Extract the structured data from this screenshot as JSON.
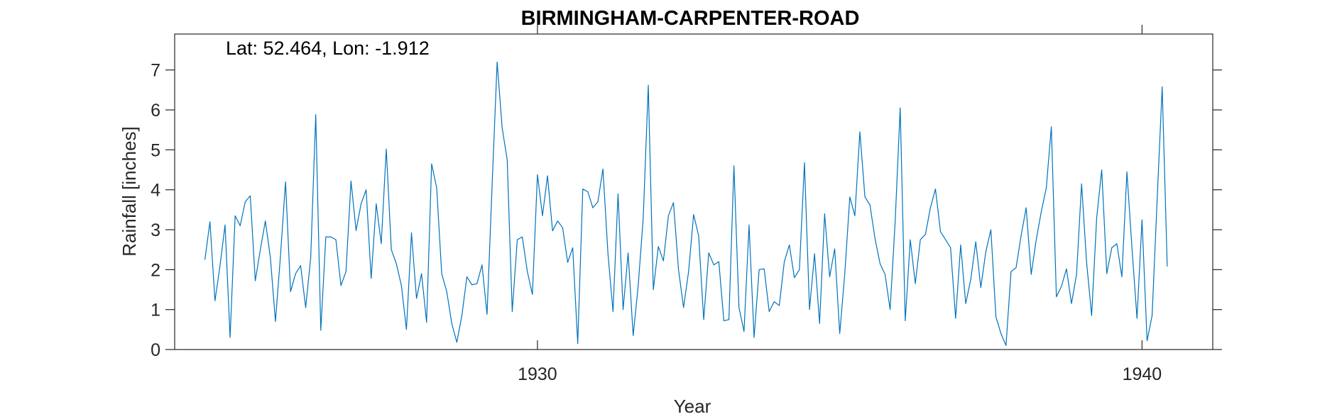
{
  "chart_data": {
    "type": "line",
    "title": "BIRMINGHAM-CARPENTER-ROAD",
    "annotation": "Lat: 52.464, Lon: -1.912",
    "xlabel": "Year",
    "ylabel": "Rainfall [inches]",
    "xlim": [
      1924.0,
      1941.17
    ],
    "ylim": [
      0,
      7.9
    ],
    "xticks": [
      1930,
      1940
    ],
    "yticks": [
      0,
      1,
      2,
      3,
      4,
      5,
      6,
      7
    ],
    "grid": false,
    "color": "#0072BD",
    "series": [
      {
        "x_start": 1924.5,
        "x_step_months": 1,
        "values": [
          2.25,
          3.2,
          1.22,
          2.1,
          3.12,
          0.3,
          3.35,
          3.1,
          3.7,
          3.85,
          1.72,
          2.5,
          3.22,
          2.3,
          0.7,
          2.35,
          4.2,
          1.45,
          1.9,
          2.1,
          1.05,
          2.3,
          5.88,
          0.48,
          2.82,
          2.82,
          2.75,
          1.6,
          1.95,
          4.22,
          2.98,
          3.65,
          4.0,
          1.78,
          3.65,
          2.65,
          5.02,
          2.5,
          2.15,
          1.6,
          0.5,
          2.92,
          1.28,
          1.9,
          0.68,
          4.65,
          4.05,
          1.9,
          1.45,
          0.65,
          0.18,
          0.85,
          1.82,
          1.62,
          1.65,
          2.12,
          0.88,
          4.1,
          7.2,
          5.55,
          4.75,
          0.95,
          2.75,
          2.82,
          1.95,
          1.38,
          4.38,
          3.35,
          4.35,
          2.97,
          3.22,
          3.05,
          2.18,
          2.55,
          0.15,
          4.02,
          3.95,
          3.55,
          3.7,
          4.52,
          2.4,
          0.95,
          3.9,
          1.0,
          2.42,
          0.35,
          1.6,
          3.3,
          6.62,
          1.5,
          2.58,
          2.22,
          3.35,
          3.68,
          2.0,
          1.05,
          1.95,
          3.38,
          2.85,
          0.75,
          2.42,
          2.12,
          2.2,
          0.72,
          0.75,
          4.6,
          1.05,
          0.45,
          3.12,
          0.3,
          2.0,
          2.02,
          0.95,
          1.2,
          1.1,
          2.2,
          2.62,
          1.8,
          2.0,
          4.68,
          1.0,
          2.4,
          0.65,
          3.4,
          1.82,
          2.52,
          0.4,
          1.9,
          3.82,
          3.35,
          5.45,
          3.82,
          3.62,
          2.78,
          2.15,
          1.88,
          1.0,
          3.2,
          6.05,
          0.72,
          2.75,
          1.65,
          2.75,
          2.88,
          3.55,
          4.02,
          2.95,
          2.75,
          2.55,
          0.78,
          2.62,
          1.15,
          1.75,
          2.7,
          1.55,
          2.45,
          3.0,
          0.82,
          0.4,
          0.1,
          1.95,
          2.05,
          2.85,
          3.55,
          1.88,
          2.75,
          3.45,
          4.05,
          5.58,
          1.32,
          1.58,
          2.02,
          1.15,
          1.88,
          4.15,
          2.18,
          0.85,
          3.3,
          4.5,
          1.9,
          2.55,
          2.65,
          1.82,
          4.45,
          2.55,
          0.78,
          3.25,
          0.22,
          0.85,
          3.75,
          6.58,
          2.08
        ]
      }
    ]
  }
}
